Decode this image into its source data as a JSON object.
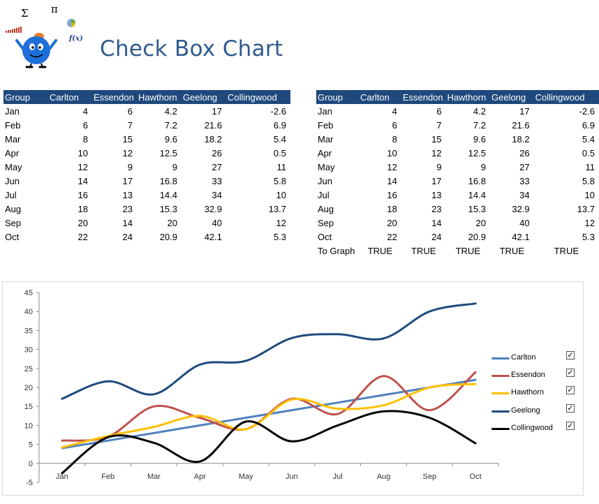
{
  "page": {
    "title": "Check Box Chart",
    "logo_symbols": [
      "Σ",
      "π",
      "f(x)"
    ]
  },
  "table_left": {
    "headers": [
      "Group",
      "Carlton",
      "Essendon",
      "Hawthorn",
      "Geelong",
      "Collingwood"
    ],
    "rows": [
      [
        "Jan",
        "4",
        "6",
        "4.2",
        "17",
        "-2.6"
      ],
      [
        "Feb",
        "6",
        "7",
        "7.2",
        "21.6",
        "6.9"
      ],
      [
        "Mar",
        "8",
        "15",
        "9.6",
        "18.2",
        "5.4"
      ],
      [
        "Apr",
        "10",
        "12",
        "12.5",
        "26",
        "0.5"
      ],
      [
        "May",
        "12",
        "9",
        "9",
        "27",
        "11"
      ],
      [
        "Jun",
        "14",
        "17",
        "16.8",
        "33",
        "5.8"
      ],
      [
        "Jul",
        "16",
        "13",
        "14.4",
        "34",
        "10"
      ],
      [
        "Aug",
        "18",
        "23",
        "15.3",
        "32.9",
        "13.7"
      ],
      [
        "Sep",
        "20",
        "14",
        "20",
        "40",
        "12"
      ],
      [
        "Oct",
        "22",
        "24",
        "20.9",
        "42.1",
        "5.3"
      ]
    ]
  },
  "table_right": {
    "headers": [
      "Group",
      "Carlton",
      "Essendon",
      "Hawthorn",
      "Geelong",
      "Collingwood"
    ],
    "rows": [
      [
        "Jan",
        "4",
        "6",
        "4.2",
        "17",
        "-2.6"
      ],
      [
        "Feb",
        "6",
        "7",
        "7.2",
        "21.6",
        "6.9"
      ],
      [
        "Mar",
        "8",
        "15",
        "9.6",
        "18.2",
        "5.4"
      ],
      [
        "Apr",
        "10",
        "12",
        "12.5",
        "26",
        "0.5"
      ],
      [
        "May",
        "12",
        "9",
        "9",
        "27",
        "11"
      ],
      [
        "Jun",
        "14",
        "17",
        "16.8",
        "33",
        "5.8"
      ],
      [
        "Jul",
        "16",
        "13",
        "14.4",
        "34",
        "10"
      ],
      [
        "Aug",
        "18",
        "23",
        "15.3",
        "32.9",
        "13.7"
      ],
      [
        "Sep",
        "20",
        "14",
        "20",
        "40",
        "12"
      ],
      [
        "Oct",
        "22",
        "24",
        "20.9",
        "42.1",
        "5.3"
      ]
    ],
    "to_graph_row": [
      "To Graph",
      "TRUE",
      "TRUE",
      "TRUE",
      "TRUE",
      "TRUE"
    ]
  },
  "chart_data": {
    "type": "line",
    "smooth": true,
    "categories": [
      "Jan",
      "Feb",
      "Mar",
      "Apr",
      "May",
      "Jun",
      "Jul",
      "Aug",
      "Sep",
      "Oct"
    ],
    "series": [
      {
        "name": "Carlton",
        "color": "#4f81bd",
        "values": [
          4,
          6,
          8,
          10,
          12,
          14,
          16,
          18,
          20,
          22
        ],
        "checked": true
      },
      {
        "name": "Essendon",
        "color": "#c0504d",
        "values": [
          6,
          7,
          15,
          12,
          9,
          17,
          13,
          23,
          14,
          24
        ],
        "checked": true
      },
      {
        "name": "Hawthorn",
        "color": "#ffc000",
        "values": [
          4.2,
          7.2,
          9.6,
          12.5,
          9,
          16.8,
          14.4,
          15.3,
          20,
          20.9
        ],
        "checked": true
      },
      {
        "name": "Geelong",
        "color": "#1f497d",
        "values": [
          17,
          21.6,
          18.2,
          26,
          27,
          33,
          34,
          32.9,
          40,
          42.1
        ],
        "checked": true
      },
      {
        "name": "Collingwood",
        "color": "#000000",
        "values": [
          -2.6,
          6.9,
          5.4,
          0.5,
          11,
          5.8,
          10,
          13.7,
          12,
          5.3
        ],
        "checked": true
      }
    ],
    "ylim": [
      -5,
      45
    ],
    "yticks": [
      -5,
      0,
      5,
      10,
      15,
      20,
      25,
      30,
      35,
      40,
      45
    ],
    "grid": false,
    "legend_position": "right",
    "check_mark": "✓",
    "title": "",
    "xlabel": "",
    "ylabel": ""
  }
}
